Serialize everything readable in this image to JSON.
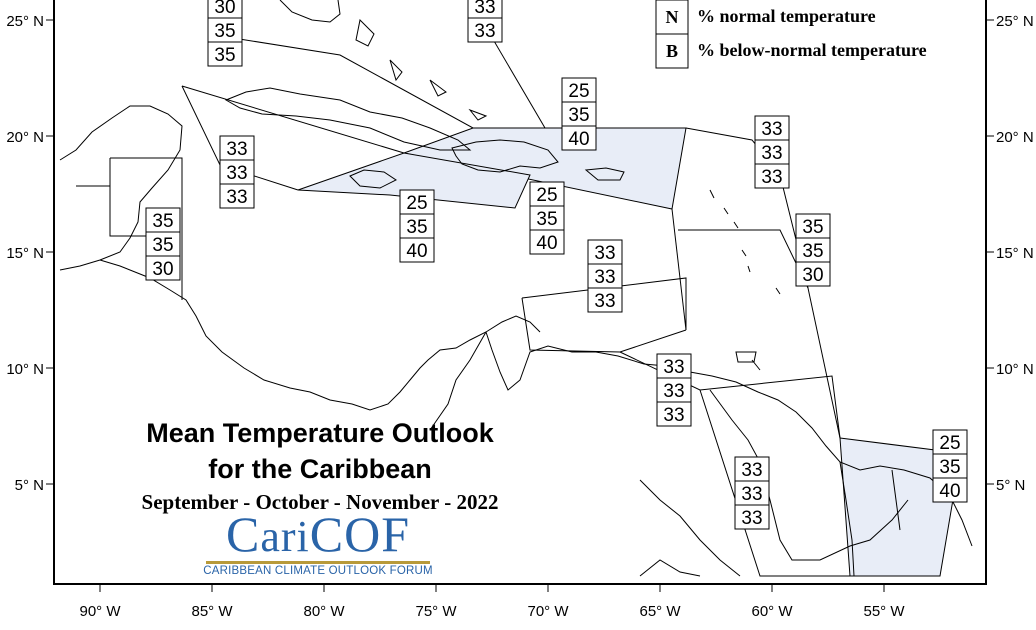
{
  "legend": [
    {
      "key": "N",
      "label": "% normal temperature"
    },
    {
      "key": "B",
      "label": "% below-normal temperature"
    }
  ],
  "title": {
    "line1": "Mean Temperature Outlook",
    "line2": "for the Caribbean",
    "period": "September - October - November - 2022"
  },
  "logo": {
    "name": "CariCOF",
    "subtitle": "CARIBBEAN CLIMATE OUTLOOK FORUM"
  },
  "axes": {
    "x_ticks": [
      "90° W",
      "85° W",
      "80° W",
      "75° W",
      "70° W",
      "65° W",
      "60° W",
      "55° W"
    ],
    "y_ticks": [
      "25° N",
      "20° N",
      "15° N",
      "10° N",
      "5° N"
    ]
  },
  "colors": {
    "highlight_fill": "#e8edf7",
    "logo_blue": "#2a64a8",
    "logo_gold": "#b89a3a"
  },
  "regions": [
    {
      "name": "florida-straits",
      "values": [
        "30",
        "35",
        "35"
      ],
      "highlight": false
    },
    {
      "name": "bahamas",
      "values": [
        "33",
        "33"
      ],
      "highlight": false
    },
    {
      "name": "cuba-haiti-east",
      "values": [
        "25",
        "35",
        "40"
      ],
      "highlight": true
    },
    {
      "name": "leeward-islands",
      "values": [
        "33",
        "33",
        "33"
      ],
      "highlight": false
    },
    {
      "name": "western-caribbean",
      "values": [
        "33",
        "33",
        "33"
      ],
      "highlight": false
    },
    {
      "name": "belize-honduras",
      "values": [
        "35",
        "35",
        "30"
      ],
      "highlight": false
    },
    {
      "name": "jamaica",
      "values": [
        "25",
        "35",
        "40"
      ],
      "highlight": true
    },
    {
      "name": "hispaniola-south",
      "values": [
        "25",
        "35",
        "40"
      ],
      "highlight": true
    },
    {
      "name": "windward-islands",
      "values": [
        "35",
        "35",
        "30"
      ],
      "highlight": false
    },
    {
      "name": "central-caribbean",
      "values": [
        "33",
        "33",
        "33"
      ],
      "highlight": false
    },
    {
      "name": "trinidad-venezuela",
      "values": [
        "33",
        "33",
        "33"
      ],
      "highlight": false
    },
    {
      "name": "suriname-french-guiana",
      "values": [
        "25",
        "35",
        "40"
      ],
      "highlight": true
    },
    {
      "name": "guyana",
      "values": [
        "33",
        "33",
        "33"
      ],
      "highlight": false
    }
  ]
}
